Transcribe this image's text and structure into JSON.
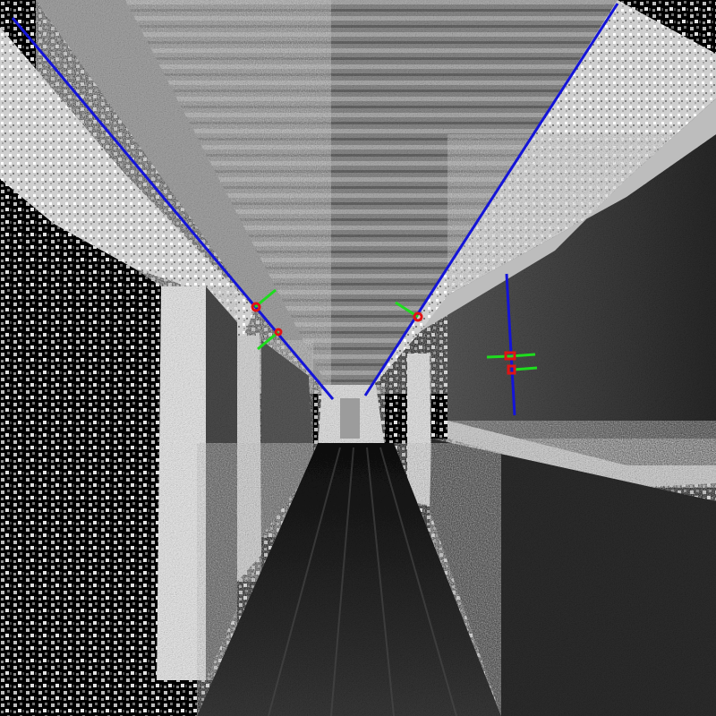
{
  "scene": {
    "description_free": true,
    "overlay_colors": {
      "edge_line": "#1414d8",
      "normal_segment": "#1edc1e",
      "anchor_marker": "#e01414"
    },
    "palette": {
      "ceiling": "#8a8a8a",
      "wall_light": "#e8e8e8",
      "wall_shadow": "#3a3a3a",
      "floor": "#2a2a2a",
      "background_noise": "#000000"
    }
  }
}
